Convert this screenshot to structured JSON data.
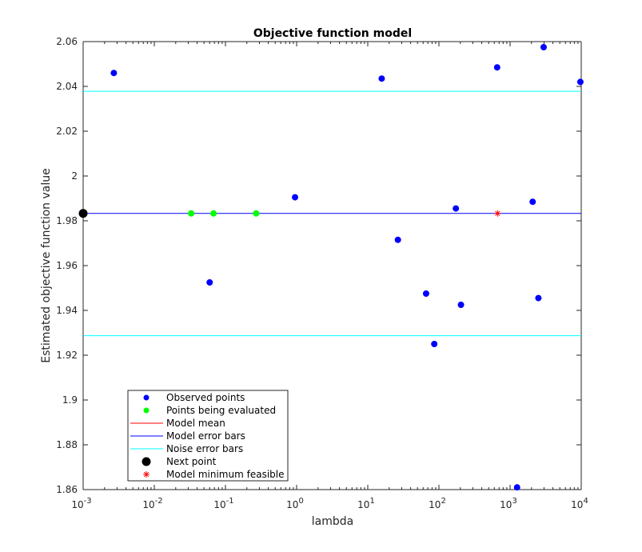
{
  "chart_data": {
    "type": "scatter",
    "title": "Objective function model",
    "xlabel": "lambda",
    "ylabel": "Estimated objective function value",
    "xscale": "log",
    "xlim": [
      0.001,
      10000
    ],
    "ylim": [
      1.86,
      2.06
    ],
    "grid": false,
    "x_ticks": [
      {
        "value": 0.001,
        "base": "10",
        "exp": "-3"
      },
      {
        "value": 0.01,
        "base": "10",
        "exp": "-2"
      },
      {
        "value": 0.1,
        "base": "10",
        "exp": "-1"
      },
      {
        "value": 1,
        "base": "10",
        "exp": "0"
      },
      {
        "value": 10,
        "base": "10",
        "exp": "1"
      },
      {
        "value": 100,
        "base": "10",
        "exp": "2"
      },
      {
        "value": 1000,
        "base": "10",
        "exp": "3"
      },
      {
        "value": 10000,
        "base": "10",
        "exp": "4"
      }
    ],
    "y_ticks": [
      {
        "value": 1.86,
        "label": "1.86"
      },
      {
        "value": 1.88,
        "label": "1.88"
      },
      {
        "value": 1.9,
        "label": "1.9"
      },
      {
        "value": 1.92,
        "label": "1.92"
      },
      {
        "value": 1.94,
        "label": "1.94"
      },
      {
        "value": 1.96,
        "label": "1.96"
      },
      {
        "value": 1.98,
        "label": "1.98"
      },
      {
        "value": 2.0,
        "label": "2"
      },
      {
        "value": 2.02,
        "label": "2.02"
      },
      {
        "value": 2.04,
        "label": "2.04"
      },
      {
        "value": 2.06,
        "label": "2.06"
      }
    ],
    "legend_position": "bottom-left",
    "series": [
      {
        "name": "Observed points",
        "kind": "marker",
        "marker": "circle",
        "color": "#0000ff",
        "points": [
          [
            0.0027,
            2.046
          ],
          [
            0.06,
            1.9525
          ],
          [
            0.95,
            1.9905
          ],
          [
            15.7,
            2.0435
          ],
          [
            26.5,
            1.9715
          ],
          [
            66,
            1.9475
          ],
          [
            86,
            1.925
          ],
          [
            173,
            1.9855
          ],
          [
            204,
            1.9425
          ],
          [
            658,
            2.0485
          ],
          [
            1254,
            1.861
          ],
          [
            2077,
            1.9885
          ],
          [
            2500,
            1.9455
          ],
          [
            2962,
            2.0575
          ],
          [
            9730,
            2.042
          ]
        ]
      },
      {
        "name": "Points being evaluated",
        "kind": "marker",
        "marker": "circle",
        "color": "#00ff00",
        "points": [
          [
            0.033,
            1.9833
          ],
          [
            0.068,
            1.9833
          ],
          [
            0.27,
            1.9833
          ]
        ]
      },
      {
        "name": "Model mean",
        "kind": "line",
        "color": "#ff0000",
        "points": [
          [
            0.001,
            1.9833
          ],
          [
            10000,
            1.9833
          ]
        ]
      },
      {
        "name": "Model error bars",
        "kind": "line",
        "color": "#0000ff",
        "points": [
          [
            0.001,
            1.9833
          ],
          [
            10000,
            1.9833
          ]
        ]
      },
      {
        "name": "Noise error bars",
        "kind": "line",
        "color": "#00ffff",
        "upper": [
          [
            0.001,
            2.0378
          ],
          [
            10000,
            2.0378
          ]
        ],
        "lower": [
          [
            0.001,
            1.9287
          ],
          [
            10000,
            1.9287
          ]
        ]
      },
      {
        "name": "Next point",
        "kind": "marker",
        "marker": "circle-large",
        "color": "#000000",
        "points": [
          [
            0.001,
            1.9833
          ]
        ]
      },
      {
        "name": "Model minimum feasible",
        "kind": "marker",
        "marker": "asterisk",
        "color": "#ff0000",
        "points": [
          [
            667,
            1.9833
          ]
        ]
      }
    ]
  }
}
